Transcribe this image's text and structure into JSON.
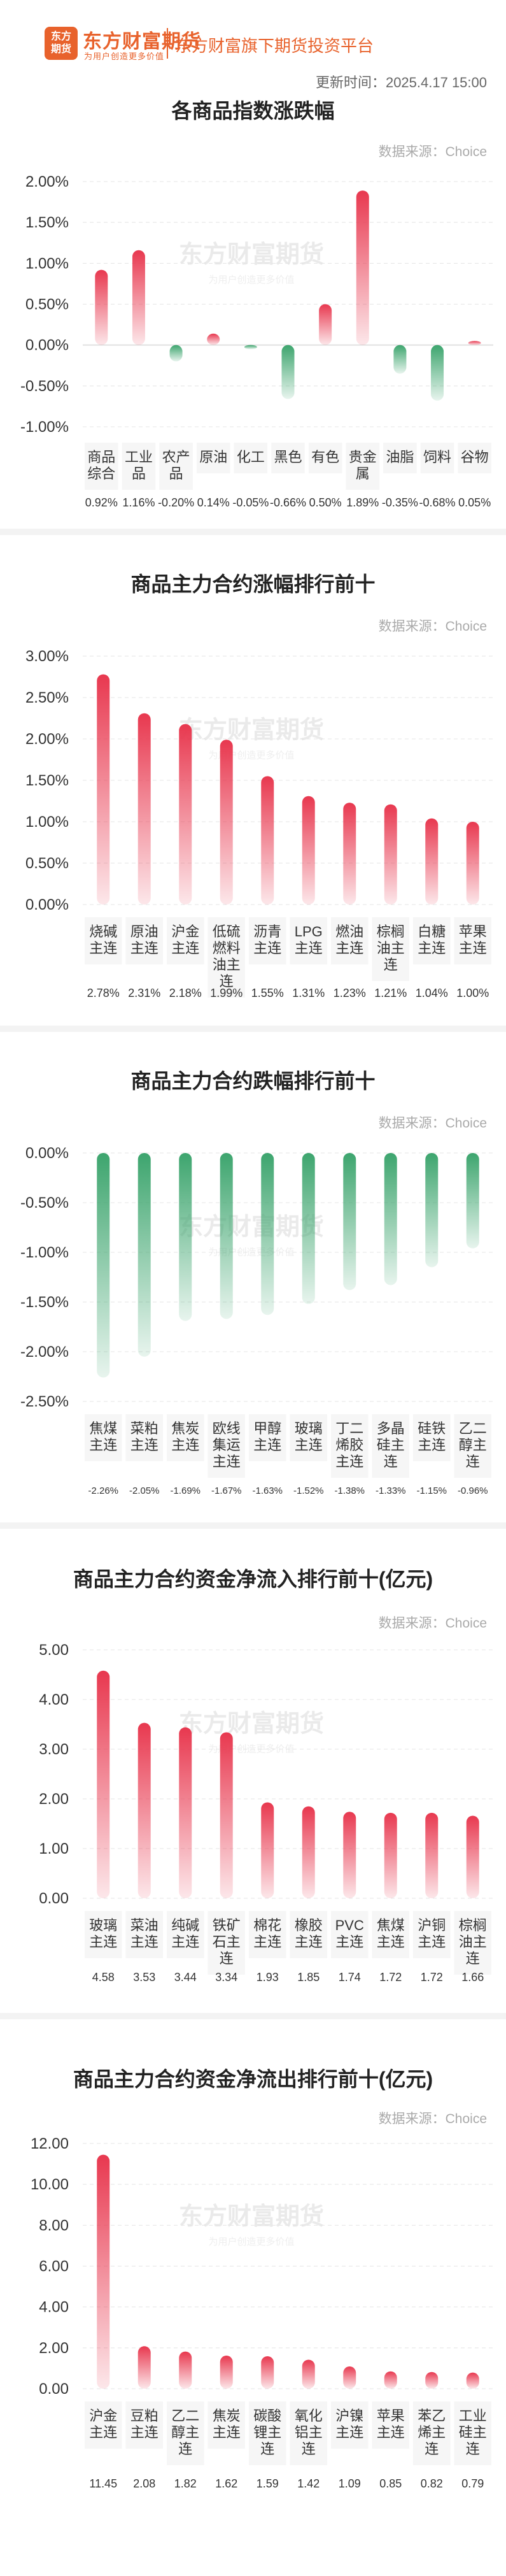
{
  "header": {
    "logo_line1": "东方",
    "logo_line2": "期货",
    "brand": "东方财富期货",
    "slogan": "为用户创造更多价值",
    "platform": "东方财富旗下期货投资平台",
    "update_time": "更新时间：2025.4.17 15:00"
  },
  "source_label": "数据来源：Choice",
  "watermark": {
    "main": "东方财富期货",
    "sub": "为用户创造更多价值"
  },
  "colors": {
    "up": "#e8384f",
    "down": "#3da56e",
    "brand": "#e8622c"
  },
  "chart_data": [
    {
      "type": "bar",
      "title": "各商品指数涨跌幅",
      "categories": [
        "商品\n综合",
        "工业\n品",
        "农产\n品",
        "原油",
        "化工",
        "黑色",
        "有色",
        "贵金\n属",
        "油脂",
        "饲料",
        "谷物"
      ],
      "values": [
        0.92,
        1.16,
        -0.2,
        0.14,
        -0.05,
        -0.66,
        0.5,
        1.89,
        -0.35,
        -0.68,
        0.05
      ],
      "value_labels": [
        "0.92%",
        "1.16%",
        "-0.20%",
        "0.14%",
        "-0.05%",
        "-0.66%",
        "0.50%",
        "1.89%",
        "-0.35%",
        "-0.68%",
        "0.05%"
      ],
      "yticks": [
        "2.00%",
        "1.50%",
        "1.00%",
        "0.50%",
        "0.00%",
        "-0.50%",
        "-1.00%"
      ],
      "ylim": [
        -1.0,
        2.0
      ]
    },
    {
      "type": "bar",
      "title": "商品主力合约涨幅排行前十",
      "categories": [
        "烧碱\n主连",
        "原油\n主连",
        "沪金\n主连",
        "低硫\n燃料\n油主\n连",
        "沥青\n主连",
        "LPG\n主连",
        "燃油\n主连",
        "棕榈\n油主\n连",
        "白糖\n主连",
        "苹果\n主连"
      ],
      "values": [
        2.78,
        2.31,
        2.18,
        1.99,
        1.55,
        1.31,
        1.23,
        1.21,
        1.04,
        1.0
      ],
      "value_labels": [
        "2.78%",
        "2.31%",
        "2.18%",
        "1.99%",
        "1.55%",
        "1.31%",
        "1.23%",
        "1.21%",
        "1.04%",
        "1.00%"
      ],
      "yticks": [
        "3.00%",
        "2.50%",
        "2.00%",
        "1.50%",
        "1.00%",
        "0.50%",
        "0.00%"
      ],
      "ylim": [
        0,
        3.0
      ]
    },
    {
      "type": "bar",
      "title": "商品主力合约跌幅排行前十",
      "categories": [
        "焦煤\n主连",
        "菜粕\n主连",
        "焦炭\n主连",
        "欧线\n集运\n主连",
        "甲醇\n主连",
        "玻璃\n主连",
        "丁二\n烯胶\n主连",
        "多晶\n硅主\n连",
        "硅铁\n主连",
        "乙二\n醇主\n连"
      ],
      "values": [
        -2.26,
        -2.05,
        -1.69,
        -1.67,
        -1.63,
        -1.52,
        -1.38,
        -1.33,
        -1.15,
        -0.96
      ],
      "value_labels": [
        "-2.26%",
        "-2.05%",
        "-1.69%",
        "-1.67%",
        "-1.63%",
        "-1.52%",
        "-1.38%",
        "-1.33%",
        "-1.15%",
        "-0.96%"
      ],
      "yticks": [
        "0.00%",
        "-0.50%",
        "-1.00%",
        "-1.50%",
        "-2.00%",
        "-2.50%"
      ],
      "ylim": [
        -2.5,
        0
      ]
    },
    {
      "type": "bar",
      "title": "商品主力合约资金净流入排行前十(亿元)",
      "categories": [
        "玻璃\n主连",
        "菜油\n主连",
        "纯碱\n主连",
        "铁矿\n石主\n连",
        "棉花\n主连",
        "橡胶\n主连",
        "PVC\n主连",
        "焦煤\n主连",
        "沪铜\n主连",
        "棕榈\n油主\n连"
      ],
      "values": [
        4.58,
        3.53,
        3.44,
        3.34,
        1.93,
        1.85,
        1.74,
        1.72,
        1.72,
        1.66
      ],
      "value_labels": [
        "4.58",
        "3.53",
        "3.44",
        "3.34",
        "1.93",
        "1.85",
        "1.74",
        "1.72",
        "1.72",
        "1.66"
      ],
      "yticks": [
        "5.00",
        "4.00",
        "3.00",
        "2.00",
        "1.00",
        "0.00"
      ],
      "ylim": [
        0,
        5.0
      ]
    },
    {
      "type": "bar",
      "title": "商品主力合约资金净流出排行前十(亿元)",
      "categories": [
        "沪金\n主连",
        "豆粕\n主连",
        "乙二\n醇主\n连",
        "焦炭\n主连",
        "碳酸\n锂主\n连",
        "氧化\n铝主\n连",
        "沪镍\n主连",
        "苹果\n主连",
        "苯乙\n烯主\n连",
        "工业\n硅主\n连"
      ],
      "values": [
        11.45,
        2.08,
        1.82,
        1.62,
        1.59,
        1.42,
        1.09,
        0.85,
        0.82,
        0.79
      ],
      "value_labels": [
        "11.45",
        "2.08",
        "1.82",
        "1.62",
        "1.59",
        "1.42",
        "1.09",
        "0.85",
        "0.82",
        "0.79"
      ],
      "yticks": [
        "12.00",
        "10.00",
        "8.00",
        "6.00",
        "4.00",
        "2.00",
        "0.00"
      ],
      "ylim": [
        0,
        12.0
      ]
    }
  ]
}
